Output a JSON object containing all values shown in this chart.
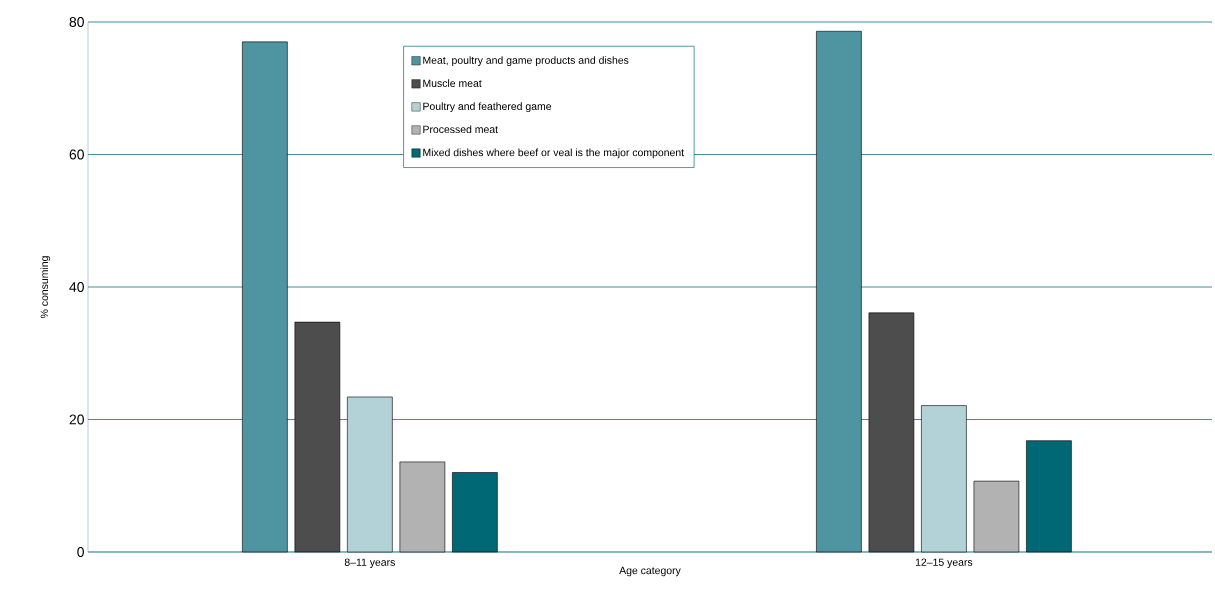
{
  "chart_data": {
    "type": "bar",
    "xlabel": "Age category",
    "ylabel": "% consuming",
    "categories": [
      "8–11 years",
      "12–15 years"
    ],
    "series": [
      {
        "name": "Meat, poultry and game products and dishes",
        "color": "#4e94a1",
        "values": [
          77.0,
          78.6
        ]
      },
      {
        "name": "Muscle meat",
        "color": "#4d4d4d",
        "values": [
          34.7,
          36.1
        ]
      },
      {
        "name": "Poultry and feathered game",
        "color": "#b3d2d7",
        "values": [
          23.4,
          22.1
        ]
      },
      {
        "name": "Processed meat",
        "color": "#b2b2b2",
        "values": [
          13.6,
          10.7
        ]
      },
      {
        "name": "Mixed dishes where beef or veal is the major component",
        "color": "#006775",
        "values": [
          12.0,
          16.8
        ]
      }
    ],
    "ylim": [
      0,
      80
    ],
    "yticks": [
      0,
      20,
      40,
      60,
      80
    ],
    "grid": "y",
    "legend": "top"
  }
}
